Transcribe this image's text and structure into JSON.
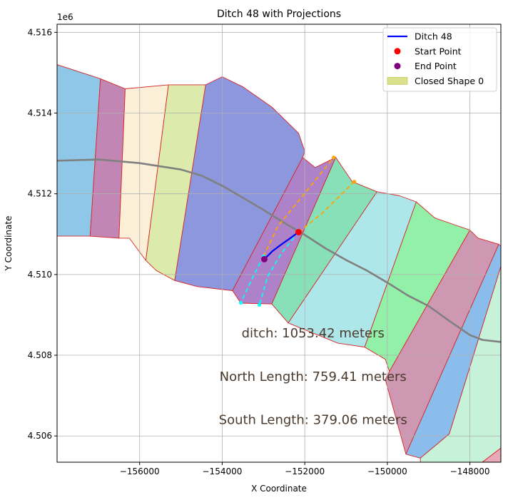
{
  "chart_data": {
    "type": "line",
    "title": "Ditch 48 with Projections",
    "xlabel": "X Coordinate",
    "ylabel": "Y Coordinate",
    "y_offset_label": "1e6",
    "xlim": [
      -158000,
      -147250
    ],
    "ylim": [
      4505350,
      4516200
    ],
    "x_ticks": [
      -156000,
      -154000,
      -152000,
      -150000,
      -148000
    ],
    "x_tick_labels": [
      "−156000",
      "−154000",
      "−152000",
      "−150000",
      "−148000"
    ],
    "y_ticks": [
      4506000,
      4508000,
      4510000,
      4512000,
      4514000,
      4516000
    ],
    "y_tick_labels": [
      "4.506",
      "4.508",
      "4.510",
      "4.512",
      "4.514",
      "4.516"
    ],
    "grid": true,
    "legend_position": "upper-right",
    "legend": [
      {
        "label": "Ditch 48",
        "kind": "line",
        "color": "#0000ff"
      },
      {
        "label": "Start Point",
        "kind": "point",
        "color": "#ff0000"
      },
      {
        "label": "End Point",
        "kind": "point",
        "color": "#800080"
      },
      {
        "label": "Closed Shape 0",
        "kind": "patch",
        "color": "#dbe18b"
      }
    ],
    "annotations": [
      {
        "text": "ditch: 1053.42 meters",
        "x": -151800,
        "y": 4508550
      },
      {
        "text": "North Length: 759.41 meters",
        "x": -151800,
        "y": 4507470
      },
      {
        "text": "South Length: 379.06 meters",
        "x": -151800,
        "y": 4506400
      }
    ],
    "region_edge_color": "#d62728",
    "regions": [
      {
        "color": "#8fc7e8",
        "points": [
          [
            -158000,
            4515200
          ],
          [
            -156950,
            4514850
          ],
          [
            -157200,
            4510950
          ],
          [
            -158000,
            4510950
          ]
        ]
      },
      {
        "color": "#c286b5",
        "points": [
          [
            -156950,
            4514850
          ],
          [
            -156350,
            4514600
          ],
          [
            -156500,
            4510900
          ],
          [
            -157200,
            4510950
          ]
        ]
      },
      {
        "color": "#fbefd8",
        "points": [
          [
            -156350,
            4514600
          ],
          [
            -155300,
            4514700
          ],
          [
            -155850,
            4510350
          ],
          [
            -156250,
            4510900
          ],
          [
            -156500,
            4510900
          ]
        ]
      },
      {
        "color": "#dcebab",
        "points": [
          [
            -155300,
            4514700
          ],
          [
            -154400,
            4514700
          ],
          [
            -155150,
            4509850
          ],
          [
            -155600,
            4510100
          ],
          [
            -155850,
            4510350
          ]
        ]
      },
      {
        "color": "#8c97de",
        "points": [
          [
            -154400,
            4514700
          ],
          [
            -154000,
            4514900
          ],
          [
            -153500,
            4514650
          ],
          [
            -152800,
            4514150
          ],
          [
            -152150,
            4513500
          ],
          [
            -152000,
            4513050
          ],
          [
            -152050,
            4512900
          ],
          [
            -153750,
            4509600
          ],
          [
            -154600,
            4509700
          ],
          [
            -155150,
            4509850
          ]
        ]
      },
      {
        "color": "#ad82c9",
        "points": [
          [
            -152050,
            4512900
          ],
          [
            -151750,
            4512650
          ],
          [
            -151250,
            4512900
          ],
          [
            -152800,
            4509270
          ],
          [
            -153550,
            4509290
          ],
          [
            -153750,
            4509600
          ]
        ]
      },
      {
        "color": "#88e0b8",
        "points": [
          [
            -151250,
            4512900
          ],
          [
            -150850,
            4512300
          ],
          [
            -150250,
            4512050
          ],
          [
            -152400,
            4508800
          ],
          [
            -152800,
            4509270
          ]
        ]
      },
      {
        "color": "#aee7ea",
        "points": [
          [
            -150250,
            4512050
          ],
          [
            -149700,
            4511950
          ],
          [
            -149300,
            4511800
          ],
          [
            -150550,
            4508200
          ],
          [
            -151200,
            4508300
          ],
          [
            -152400,
            4508800
          ]
        ]
      },
      {
        "color": "#93f0a8",
        "points": [
          [
            -149300,
            4511800
          ],
          [
            -148850,
            4511400
          ],
          [
            -148000,
            4511100
          ],
          [
            -149950,
            4507600
          ],
          [
            -150050,
            4507900
          ],
          [
            -150550,
            4508200
          ]
        ]
      },
      {
        "color": "#cf98b2",
        "points": [
          [
            -148000,
            4511100
          ],
          [
            -147800,
            4510900
          ],
          [
            -147300,
            4510750
          ],
          [
            -149550,
            4505550
          ],
          [
            -150050,
            4507400
          ],
          [
            -149950,
            4507600
          ]
        ]
      },
      {
        "color": "#8bbdec",
        "points": [
          [
            -147300,
            4510750
          ],
          [
            -147250,
            4510700
          ],
          [
            -147250,
            4510200
          ],
          [
            -148500,
            4506050
          ],
          [
            -149200,
            4505450
          ],
          [
            -149550,
            4505550
          ]
        ]
      },
      {
        "color": "#c6f2da",
        "points": [
          [
            -147250,
            4510200
          ],
          [
            -147250,
            4505700
          ],
          [
            -147700,
            4505350
          ],
          [
            -149200,
            4505350
          ],
          [
            -149200,
            4505450
          ],
          [
            -148500,
            4506050
          ]
        ]
      },
      {
        "color": "#e9a9b6",
        "points": [
          [
            -147250,
            4505700
          ],
          [
            -147250,
            4505350
          ],
          [
            -147700,
            4505350
          ]
        ]
      }
    ],
    "centerline": {
      "color": "#808080",
      "points": [
        [
          -158000,
          4512820
        ],
        [
          -157000,
          4512850
        ],
        [
          -156000,
          4512760
        ],
        [
          -155000,
          4512600
        ],
        [
          -154500,
          4512450
        ],
        [
          -154000,
          4512200
        ],
        [
          -153500,
          4511900
        ],
        [
          -153000,
          4511600
        ],
        [
          -152500,
          4511280
        ],
        [
          -152000,
          4510980
        ],
        [
          -151500,
          4510650
        ],
        [
          -151000,
          4510360
        ],
        [
          -150500,
          4510100
        ],
        [
          -150000,
          4509800
        ],
        [
          -149500,
          4509480
        ],
        [
          -149000,
          4509220
        ],
        [
          -148500,
          4508850
        ],
        [
          -148000,
          4508500
        ],
        [
          -147700,
          4508380
        ],
        [
          -147250,
          4508330
        ]
      ]
    },
    "series": [
      {
        "name": "Ditch 48",
        "x": [
          -152150,
          -152350,
          -152600,
          -152780,
          -152980
        ],
        "y": [
          4511050,
          4510900,
          4510720,
          4510580,
          4510380
        ],
        "color": "#0000ff"
      }
    ],
    "start_point": {
      "x": -152150,
      "y": 4511050,
      "color": "#ff0000"
    },
    "end_point": {
      "x": -152980,
      "y": 4510380,
      "color": "#800080"
    },
    "projections": [
      {
        "color": "#ffa500",
        "points": [
          [
            -153000,
            4510450
          ],
          [
            -152650,
            4511200
          ],
          [
            -152050,
            4511950
          ],
          [
            -151300,
            4512900
          ]
        ]
      },
      {
        "color": "#ffa500",
        "points": [
          [
            -152150,
            4511050
          ],
          [
            -151600,
            4511500
          ],
          [
            -151200,
            4511900
          ],
          [
            -150800,
            4512300
          ]
        ]
      },
      {
        "color": "#00ffff",
        "points": [
          [
            -152150,
            4511050
          ],
          [
            -152550,
            4510550
          ],
          [
            -152900,
            4509950
          ],
          [
            -153100,
            4509250
          ]
        ]
      },
      {
        "color": "#00ffff",
        "points": [
          [
            -153000,
            4510450
          ],
          [
            -153250,
            4509950
          ],
          [
            -153550,
            4509300
          ]
        ]
      }
    ]
  }
}
